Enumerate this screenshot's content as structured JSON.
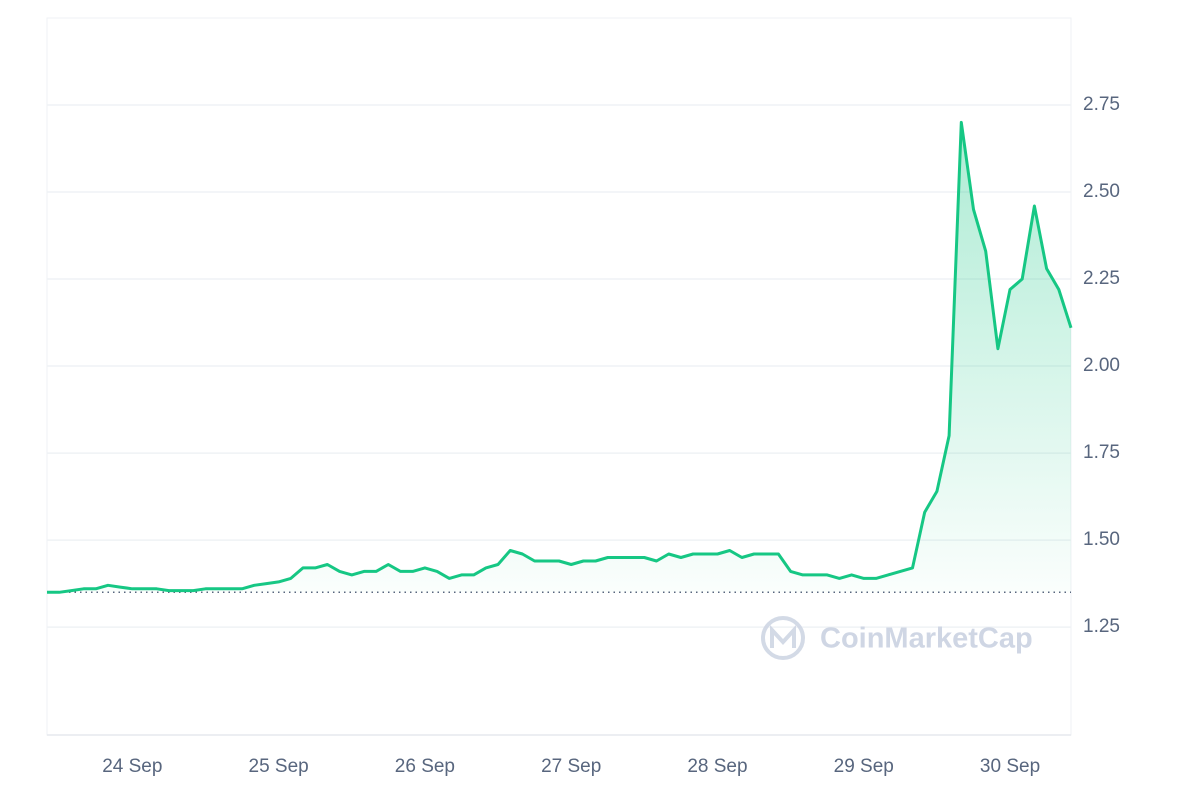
{
  "chart_data": {
    "type": "line",
    "categories": [
      null,
      null,
      null,
      null,
      null,
      null,
      null,
      "24 Sep",
      null,
      null,
      null,
      null,
      null,
      null,
      null,
      null,
      null,
      null,
      null,
      "25 Sep",
      null,
      null,
      null,
      null,
      null,
      null,
      null,
      null,
      null,
      null,
      null,
      "26 Sep",
      null,
      null,
      null,
      null,
      null,
      null,
      null,
      null,
      null,
      null,
      null,
      "27 Sep",
      null,
      null,
      null,
      null,
      null,
      null,
      null,
      null,
      null,
      null,
      null,
      "28 Sep",
      null,
      null,
      null,
      null,
      null,
      null,
      null,
      null,
      null,
      null,
      null,
      "29 Sep",
      null,
      null,
      null,
      null,
      null,
      null,
      null,
      null,
      null,
      null,
      null,
      "30 Sep",
      null,
      null,
      null,
      null,
      null
    ],
    "values": [
      1.35,
      1.35,
      1.355,
      1.36,
      1.36,
      1.37,
      1.365,
      1.36,
      1.36,
      1.36,
      1.355,
      1.355,
      1.355,
      1.36,
      1.36,
      1.36,
      1.36,
      1.37,
      1.375,
      1.38,
      1.39,
      1.42,
      1.42,
      1.43,
      1.41,
      1.4,
      1.41,
      1.41,
      1.43,
      1.41,
      1.41,
      1.42,
      1.41,
      1.39,
      1.4,
      1.4,
      1.42,
      1.43,
      1.47,
      1.46,
      1.44,
      1.44,
      1.44,
      1.43,
      1.44,
      1.44,
      1.45,
      1.45,
      1.45,
      1.45,
      1.44,
      1.46,
      1.45,
      1.46,
      1.46,
      1.46,
      1.47,
      1.45,
      1.46,
      1.46,
      1.46,
      1.41,
      1.4,
      1.4,
      1.4,
      1.39,
      1.4,
      1.39,
      1.39,
      1.4,
      1.41,
      1.42,
      1.58,
      1.64,
      1.8,
      2.7,
      2.45,
      2.33,
      2.05,
      2.22,
      2.25,
      2.46,
      2.28,
      2.22,
      2.11
    ],
    "color": "#16c784",
    "baseline": 1.35,
    "ylim": [
      0.94,
      3.0
    ],
    "yticks": [
      1.25,
      {
        "value": 1.5,
        "label": "1.50"
      },
      1.75,
      {
        "value": 2.0,
        "label": "2.00"
      },
      2.25,
      {
        "value": 2.5,
        "label": "2.50"
      },
      2.75
    ],
    "grid": true,
    "watermark": "CoinMarketCap"
  }
}
